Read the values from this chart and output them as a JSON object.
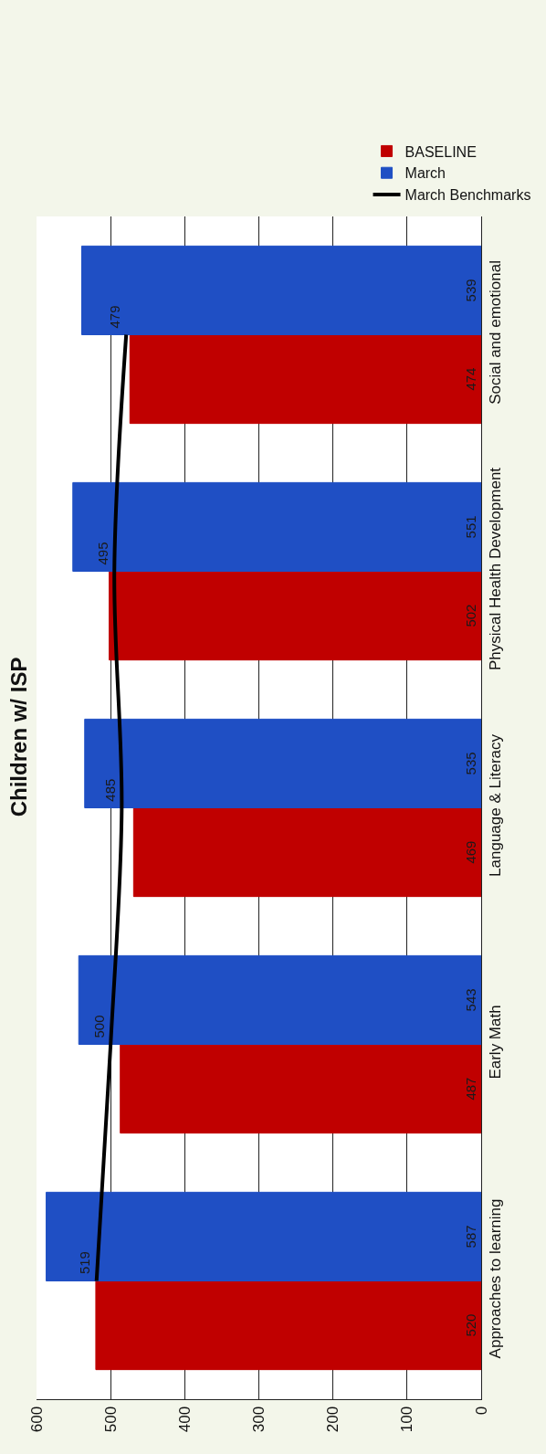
{
  "chart_data": {
    "type": "bar",
    "orientation": "horizontal",
    "title": "Children w/ ISP",
    "categories": [
      "Social and emotional",
      "Physical Health Development",
      "Language & Literacy",
      "Early Math",
      "Approaches to learning"
    ],
    "series": [
      {
        "name": "BASELINE",
        "color": "#c00000",
        "values": [
          474,
          502,
          469,
          487,
          520
        ]
      },
      {
        "name": "March",
        "color": "#1f4fc4",
        "values": [
          539,
          551,
          535,
          543,
          587
        ]
      },
      {
        "name": "March Benchmarks",
        "type": "line",
        "color": "#000000",
        "values": [
          479,
          495,
          485,
          500,
          519
        ]
      }
    ],
    "xlim": [
      600,
      0
    ],
    "xticks": [
      600,
      500,
      400,
      300,
      200,
      100,
      0
    ],
    "grid": "x",
    "legend": "top right",
    "data_labels": true,
    "marker": "none",
    "line_style": "solid"
  }
}
